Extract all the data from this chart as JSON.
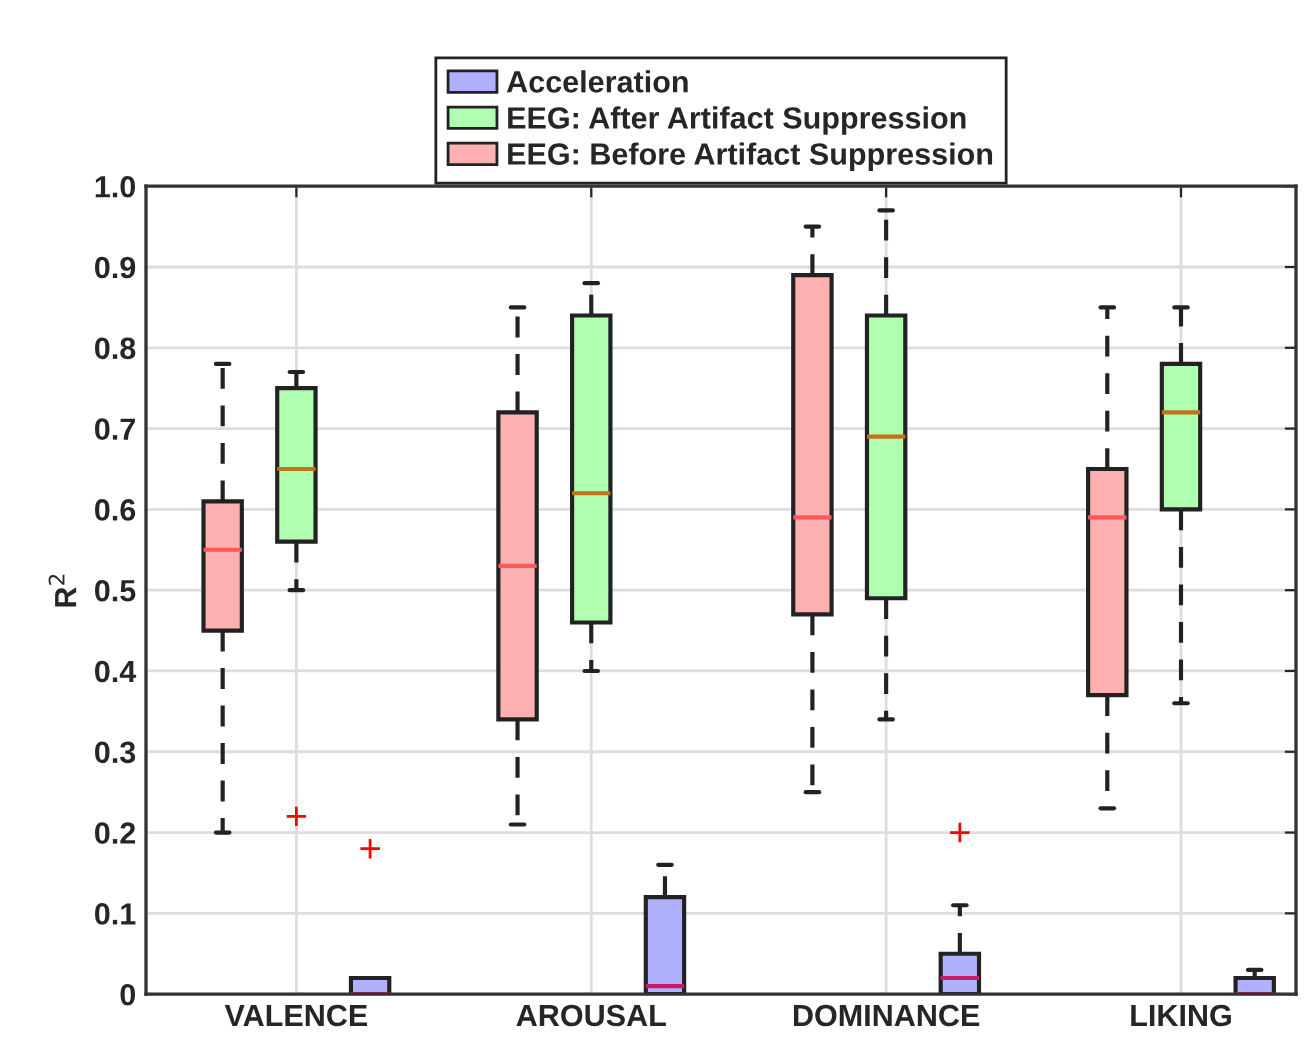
{
  "chart_data": {
    "type": "box",
    "ylabel": "R$^{2}$",
    "categories": [
      "VALENCE",
      "AROUSAL",
      "DOMINANCE",
      "LIKING"
    ],
    "series": [
      {
        "name": "EEG: Before Artifact Suppression",
        "color": "#ffb0b0",
        "boxes": [
          {
            "low": 0.2,
            "q1": 0.45,
            "median": 0.55,
            "q3": 0.61,
            "high": 0.78
          },
          {
            "low": 0.21,
            "q1": 0.34,
            "median": 0.53,
            "q3": 0.72,
            "high": 0.85
          },
          {
            "low": 0.25,
            "q1": 0.47,
            "median": 0.59,
            "q3": 0.89,
            "high": 0.95
          },
          {
            "low": 0.23,
            "q1": 0.37,
            "median": 0.59,
            "q3": 0.65,
            "high": 0.85
          }
        ]
      },
      {
        "name": "EEG: After Artifact Suppression",
        "color": "#b0ffb0",
        "boxes": [
          {
            "low": 0.5,
            "q1": 0.56,
            "median": 0.65,
            "q3": 0.75,
            "high": 0.77,
            "outliers": [
              0.22
            ]
          },
          {
            "low": 0.4,
            "q1": 0.46,
            "median": 0.62,
            "q3": 0.84,
            "high": 0.88
          },
          {
            "low": 0.34,
            "q1": 0.49,
            "median": 0.69,
            "q3": 0.84,
            "high": 0.97
          },
          {
            "low": 0.36,
            "q1": 0.6,
            "median": 0.72,
            "q3": 0.78,
            "high": 0.85
          }
        ]
      },
      {
        "name": "Acceleration",
        "color": "#b0b0ff",
        "boxes": [
          {
            "low": 0,
            "q1": 0,
            "median": 0,
            "q3": 0.02,
            "high": 0.02,
            "outliers": [
              0.18
            ]
          },
          {
            "low": 0,
            "q1": 0,
            "median": 0.01,
            "q3": 0.12,
            "high": 0.16
          },
          {
            "low": 0,
            "q1": 0,
            "median": 0.02,
            "q3": 0.05,
            "high": 0.11,
            "outliers": [
              0.2
            ]
          },
          {
            "low": 0,
            "q1": 0,
            "median": 0,
            "q3": 0.02,
            "high": 0.03
          }
        ]
      }
    ],
    "ylim": [
      0,
      1.0
    ],
    "yticks": [
      0,
      {
        "value": 0.1,
        "label": "0.1"
      },
      {
        "value": 0.2,
        "label": "0.2"
      },
      {
        "value": 0.3,
        "label": "0.3"
      },
      {
        "value": 0.4,
        "label": "0.4"
      },
      {
        "value": 0.5,
        "label": "0.5"
      },
      {
        "value": 0.6,
        "label": "0.6"
      },
      {
        "value": 0.7,
        "label": "0.7"
      },
      {
        "value": 0.8,
        "label": "0.8"
      },
      {
        "value": 0.9,
        "label": "0.9"
      },
      {
        "value": 1.0,
        "label": "1.0"
      }
    ],
    "grid": true,
    "legend": "top"
  }
}
